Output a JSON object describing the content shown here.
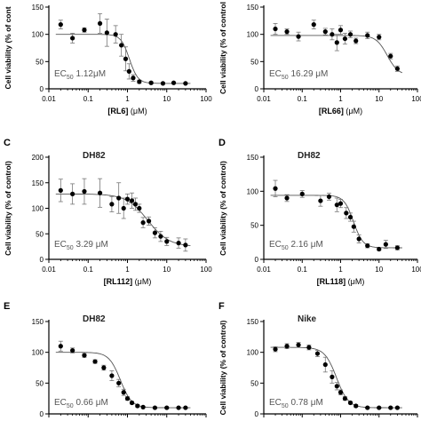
{
  "chart_data": [
    {
      "type": "scatter",
      "panel_letter": "",
      "cell_line": "",
      "ylabel": "Cell viability (% of cont",
      "xlabel_compound": "[RL6]",
      "xlabel_unit": " (μM)",
      "xscale": "log",
      "xlim": [
        0.01,
        100
      ],
      "ylim": [
        0,
        150
      ],
      "xticks": [
        "0.01",
        "0.1",
        "1",
        "10",
        "100"
      ],
      "yticks": [
        "0",
        "50",
        "100",
        "150"
      ],
      "ec50_label": "EC",
      "ec50_sub": "50",
      "ec50_value": " 1.12μM",
      "fit": {
        "top": 100,
        "bottom": 10,
        "ec50": 1.12,
        "hill": 4.0
      },
      "points": [
        {
          "x": 0.02,
          "y": 118,
          "err": 8
        },
        {
          "x": 0.04,
          "y": 93,
          "err": 9
        },
        {
          "x": 0.08,
          "y": 108,
          "err": 4
        },
        {
          "x": 0.2,
          "y": 120,
          "err": 18
        },
        {
          "x": 0.3,
          "y": 103,
          "err": 25
        },
        {
          "x": 0.5,
          "y": 100,
          "err": 16
        },
        {
          "x": 0.7,
          "y": 80,
          "err": 20
        },
        {
          "x": 0.9,
          "y": 55,
          "err": 22
        },
        {
          "x": 1.1,
          "y": 32,
          "err": 14
        },
        {
          "x": 1.4,
          "y": 20,
          "err": 6
        },
        {
          "x": 2.0,
          "y": 13,
          "err": 3
        },
        {
          "x": 4.0,
          "y": 11,
          "err": 2
        },
        {
          "x": 8.0,
          "y": 10,
          "err": 1
        },
        {
          "x": 15.0,
          "y": 11,
          "err": 1
        },
        {
          "x": 30.0,
          "y": 10,
          "err": 1
        }
      ]
    },
    {
      "type": "scatter",
      "panel_letter": "",
      "cell_line": "",
      "ylabel": "Cell viability (% of control",
      "xlabel_compound": "[RL66]",
      "xlabel_unit": " (μM)",
      "xscale": "log",
      "xlim": [
        0.01,
        100
      ],
      "ylim": [
        0,
        150
      ],
      "xticks": [
        "0.01",
        "0.1",
        "1",
        "10",
        "100"
      ],
      "yticks": [
        "0",
        "50",
        "100",
        "150"
      ],
      "ec50_label": "EC",
      "ec50_sub": "50",
      "ec50_value": " 16.29 μM",
      "fit": {
        "top": 98,
        "bottom": 25,
        "ec50": 16.29,
        "hill": 3.0
      },
      "points": [
        {
          "x": 0.02,
          "y": 110,
          "err": 10
        },
        {
          "x": 0.04,
          "y": 105,
          "err": 5
        },
        {
          "x": 0.08,
          "y": 96,
          "err": 8
        },
        {
          "x": 0.2,
          "y": 118,
          "err": 8
        },
        {
          "x": 0.4,
          "y": 105,
          "err": 6
        },
        {
          "x": 0.6,
          "y": 100,
          "err": 10
        },
        {
          "x": 0.8,
          "y": 85,
          "err": 15
        },
        {
          "x": 1.0,
          "y": 108,
          "err": 8
        },
        {
          "x": 1.3,
          "y": 92,
          "err": 10
        },
        {
          "x": 1.8,
          "y": 100,
          "err": 6
        },
        {
          "x": 2.5,
          "y": 88,
          "err": 5
        },
        {
          "x": 5.0,
          "y": 98,
          "err": 6
        },
        {
          "x": 10.0,
          "y": 95,
          "err": 5
        },
        {
          "x": 20.0,
          "y": 60,
          "err": 5
        },
        {
          "x": 30.0,
          "y": 37,
          "err": 5
        }
      ]
    },
    {
      "type": "scatter",
      "panel_letter": "C",
      "cell_line": "DH82",
      "ylabel": "Cell viability (% of control)",
      "xlabel_compound": "[RL112]",
      "xlabel_unit": " (μM)",
      "xscale": "log",
      "xlim": [
        0.01,
        100
      ],
      "ylim": [
        0,
        200
      ],
      "xticks": [
        "0.01",
        "0.1",
        "1",
        "10",
        "100"
      ],
      "yticks": [
        "0",
        "50",
        "100",
        "150",
        "200"
      ],
      "ec50_label": "EC",
      "ec50_sub": "50",
      "ec50_value": " 3.29 μM",
      "fit": {
        "top": 128,
        "bottom": 25,
        "ec50": 3.29,
        "hill": 1.6
      },
      "points": [
        {
          "x": 0.02,
          "y": 135,
          "err": 22
        },
        {
          "x": 0.04,
          "y": 128,
          "err": 20
        },
        {
          "x": 0.08,
          "y": 133,
          "err": 25
        },
        {
          "x": 0.2,
          "y": 130,
          "err": 28
        },
        {
          "x": 0.4,
          "y": 108,
          "err": 15
        },
        {
          "x": 0.6,
          "y": 120,
          "err": 30
        },
        {
          "x": 0.8,
          "y": 100,
          "err": 20
        },
        {
          "x": 1.0,
          "y": 118,
          "err": 10
        },
        {
          "x": 1.3,
          "y": 115,
          "err": 15
        },
        {
          "x": 1.6,
          "y": 108,
          "err": 12
        },
        {
          "x": 2.0,
          "y": 100,
          "err": 8
        },
        {
          "x": 2.5,
          "y": 72,
          "err": 10
        },
        {
          "x": 3.5,
          "y": 75,
          "err": 8
        },
        {
          "x": 5.0,
          "y": 52,
          "err": 10
        },
        {
          "x": 7.0,
          "y": 45,
          "err": 10
        },
        {
          "x": 10.0,
          "y": 35,
          "err": 8
        },
        {
          "x": 20.0,
          "y": 32,
          "err": 10
        },
        {
          "x": 30.0,
          "y": 28,
          "err": 12
        }
      ]
    },
    {
      "type": "scatter",
      "panel_letter": "D",
      "cell_line": "DH82",
      "ylabel": "Cell viability (% of control)",
      "xlabel_compound": "[RL118]",
      "xlabel_unit": " (μM)",
      "xscale": "log",
      "xlim": [
        0.01,
        100
      ],
      "ylim": [
        0,
        150
      ],
      "xticks": [
        "0.01",
        "0.1",
        "1",
        "10",
        "100"
      ],
      "yticks": [
        "0",
        "50",
        "100",
        "150"
      ],
      "ec50_label": "EC",
      "ec50_sub": "50",
      "ec50_value": " 2.16 μM",
      "fit": {
        "top": 94,
        "bottom": 17,
        "ec50": 2.16,
        "hill": 3.5
      },
      "points": [
        {
          "x": 0.02,
          "y": 104,
          "err": 12
        },
        {
          "x": 0.04,
          "y": 90,
          "err": 5
        },
        {
          "x": 0.1,
          "y": 96,
          "err": 5
        },
        {
          "x": 0.3,
          "y": 86,
          "err": 8
        },
        {
          "x": 0.5,
          "y": 92,
          "err": 5
        },
        {
          "x": 0.8,
          "y": 80,
          "err": 10
        },
        {
          "x": 1.0,
          "y": 82,
          "err": 6
        },
        {
          "x": 1.4,
          "y": 68,
          "err": 8
        },
        {
          "x": 1.8,
          "y": 62,
          "err": 6
        },
        {
          "x": 2.2,
          "y": 48,
          "err": 8
        },
        {
          "x": 3.0,
          "y": 30,
          "err": 6
        },
        {
          "x": 5.0,
          "y": 20,
          "err": 3
        },
        {
          "x": 10.0,
          "y": 15,
          "err": 2
        },
        {
          "x": 15.0,
          "y": 22,
          "err": 6
        },
        {
          "x": 30.0,
          "y": 17,
          "err": 3
        }
      ]
    },
    {
      "type": "scatter",
      "panel_letter": "E",
      "cell_line": "DH82",
      "ylabel": "",
      "xlabel_compound": "",
      "xlabel_unit": "",
      "xscale": "log",
      "xlim": [
        0.01,
        100
      ],
      "ylim": [
        0,
        150
      ],
      "xticks": [],
      "yticks": [
        "0",
        "50",
        "100",
        "150"
      ],
      "ec50_label": "EC",
      "ec50_sub": "50",
      "ec50_value": " 0.66 μM",
      "fit": {
        "top": 100,
        "bottom": 10,
        "ec50": 0.66,
        "hill": 3.0
      },
      "points": [
        {
          "x": 0.02,
          "y": 110,
          "err": 8
        },
        {
          "x": 0.04,
          "y": 103,
          "err": 4
        },
        {
          "x": 0.08,
          "y": 95,
          "err": 3
        },
        {
          "x": 0.15,
          "y": 85,
          "err": 3
        },
        {
          "x": 0.25,
          "y": 75,
          "err": 4
        },
        {
          "x": 0.4,
          "y": 62,
          "err": 8
        },
        {
          "x": 0.6,
          "y": 50,
          "err": 6
        },
        {
          "x": 0.8,
          "y": 35,
          "err": 5
        },
        {
          "x": 1.0,
          "y": 25,
          "err": 3
        },
        {
          "x": 1.3,
          "y": 18,
          "err": 2
        },
        {
          "x": 1.8,
          "y": 13,
          "err": 2
        },
        {
          "x": 2.5,
          "y": 11,
          "err": 1
        },
        {
          "x": 5.0,
          "y": 10,
          "err": 1
        },
        {
          "x": 10.0,
          "y": 10,
          "err": 1
        },
        {
          "x": 20.0,
          "y": 10,
          "err": 1
        },
        {
          "x": 30.0,
          "y": 10,
          "err": 1
        }
      ]
    },
    {
      "type": "scatter",
      "panel_letter": "F",
      "cell_line": "Nike",
      "ylabel": "Cell viability (% of control)",
      "xlabel_compound": "",
      "xlabel_unit": "",
      "xscale": "log",
      "xlim": [
        0.01,
        100
      ],
      "ylim": [
        0,
        150
      ],
      "xticks": [],
      "yticks": [
        "0",
        "50",
        "100",
        "150"
      ],
      "ec50_label": "EC",
      "ec50_sub": "50",
      "ec50_value": " 0.78 μM",
      "fit": {
        "top": 108,
        "bottom": 10,
        "ec50": 0.78,
        "hill": 2.8
      },
      "points": [
        {
          "x": 0.02,
          "y": 105,
          "err": 4
        },
        {
          "x": 0.04,
          "y": 110,
          "err": 4
        },
        {
          "x": 0.08,
          "y": 112,
          "err": 4
        },
        {
          "x": 0.15,
          "y": 108,
          "err": 4
        },
        {
          "x": 0.25,
          "y": 98,
          "err": 5
        },
        {
          "x": 0.4,
          "y": 80,
          "err": 12
        },
        {
          "x": 0.6,
          "y": 60,
          "err": 10
        },
        {
          "x": 0.8,
          "y": 45,
          "err": 6
        },
        {
          "x": 1.0,
          "y": 35,
          "err": 4
        },
        {
          "x": 1.3,
          "y": 25,
          "err": 3
        },
        {
          "x": 1.8,
          "y": 18,
          "err": 2
        },
        {
          "x": 2.5,
          "y": 13,
          "err": 2
        },
        {
          "x": 5.0,
          "y": 10,
          "err": 1
        },
        {
          "x": 10.0,
          "y": 10,
          "err": 1
        },
        {
          "x": 20.0,
          "y": 10,
          "err": 1
        },
        {
          "x": 30.0,
          "y": 10,
          "err": 1
        }
      ]
    }
  ]
}
